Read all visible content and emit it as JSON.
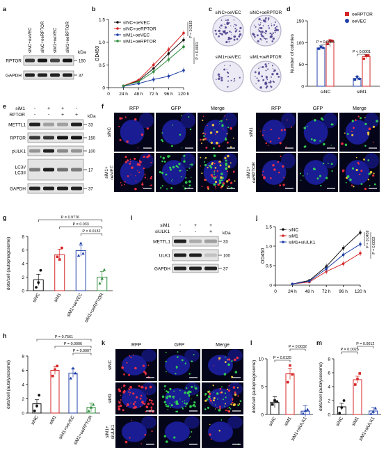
{
  "panels": {
    "a": {
      "letter": "a",
      "lanes": [
        "siNC+oeVEC",
        "siNC+oeRPTOR",
        "siM1+oeVEC",
        "siM1+oeRPTOR"
      ],
      "kda_label": "kDa",
      "bands": [
        {
          "label": "RPTOR",
          "marker": "150",
          "intensity": [
            0.8,
            0.95,
            0.75,
            0.95
          ]
        },
        {
          "label": "GAPDH",
          "marker": "37",
          "intensity": [
            0.9,
            0.9,
            0.9,
            0.9
          ]
        }
      ]
    },
    "b": {
      "letter": "b",
      "chart_data": {
        "type": "line",
        "x": [
          "0",
          "24 h",
          "48 h",
          "72 h",
          "96 h",
          "120 h"
        ],
        "ylabel": "OD450",
        "ylim": [
          0,
          1.5
        ],
        "yticks": [
          "0",
          "0.5",
          "1.0",
          "1.5"
        ],
        "legend_position": "top-left",
        "series": [
          {
            "name": "siNC+oeVEC",
            "color": "#111111",
            "values": [
              null,
              0.04,
              0.15,
              0.42,
              0.75,
              1.05
            ]
          },
          {
            "name": "siNC+oeRPTOR",
            "color": "#d62728",
            "values": [
              null,
              0.04,
              0.17,
              0.5,
              0.84,
              1.2
            ]
          },
          {
            "name": "siM1+oeVEC",
            "color": "#1f3fa8",
            "values": [
              null,
              0.03,
              0.09,
              0.18,
              0.25,
              0.38
            ]
          },
          {
            "name": "siM1+oeRPTOR",
            "color": "#2e8b3a",
            "values": [
              null,
              0.04,
              0.13,
              0.35,
              0.62,
              0.9
            ]
          }
        ],
        "annotations": [
          "P = 0.0182",
          "P < 0.0001"
        ]
      }
    },
    "c": {
      "letter": "c",
      "dish_labels": [
        "siNC+oeVEC",
        "siNC+oeRPTOR",
        "siM1+oeVEC",
        "siM1+oeRPTOR"
      ],
      "colony_density": [
        0.8,
        0.9,
        0.3,
        0.7
      ]
    },
    "d": {
      "letter": "d",
      "chart_data": {
        "type": "bar",
        "categories": [
          "siNC",
          "siM1"
        ],
        "ylabel": "Number of colonies",
        "ylim": [
          0,
          150
        ],
        "yticks": [
          "0",
          "50",
          "100",
          "150"
        ],
        "legend_position": "top-right",
        "series": [
          {
            "name": "oeVEC",
            "color": "#1f3fa8",
            "values": [
              88,
              18
            ],
            "points": [
              [
                86,
                90,
                88
              ],
              [
                15,
                22,
                17
              ]
            ]
          },
          {
            "name": "oeRPTOR",
            "color": "#d62728",
            "values": [
              102,
              68
            ],
            "points": [
              [
                97,
                105,
                104
              ],
              [
                63,
                70,
                71
              ]
            ]
          }
        ],
        "annotations": [
          "P = 0.0064",
          "P < 0.0001"
        ]
      }
    },
    "e": {
      "letter": "e",
      "row_labels": [
        "siM1",
        "RPTOR"
      ],
      "signs": [
        [
          "-",
          "+",
          "+",
          "-"
        ],
        [
          "-",
          "-",
          "+",
          "+"
        ]
      ],
      "kda_label": "kDa",
      "bands": [
        {
          "label": "METTL1",
          "marker": "33",
          "intensity": [
            0.9,
            0.35,
            0.35,
            0.9
          ]
        },
        {
          "label": "RPTOR",
          "marker": "150",
          "intensity": [
            0.8,
            0.8,
            0.95,
            0.95
          ]
        },
        {
          "label": "pULK1",
          "marker": "100",
          "intensity": [
            0.4,
            0.9,
            0.45,
            0.4
          ]
        },
        {
          "label": "LC3I/\nLC3II",
          "marker": "17",
          "intensity": [
            0.5,
            0.9,
            0.55,
            0.5
          ]
        },
        {
          "label": "GAPDH",
          "marker": "37",
          "intensity": [
            0.9,
            0.9,
            0.9,
            0.9
          ]
        }
      ]
    },
    "f": {
      "letter": "f",
      "col_headers": [
        "RFP",
        "GFP",
        "Merge"
      ],
      "row_labels_left": [
        "siNC",
        "siM1+\noeVEC"
      ],
      "row_labels_right": [
        "siM1",
        "siM1+\noeRPTOR"
      ]
    },
    "g": {
      "letter": "g",
      "chart_data": {
        "type": "bar",
        "categories": [
          "siNC",
          "siM1",
          "siM1+oeVEC",
          "siM1+oeRPTOR"
        ],
        "ylabel": "dots/cell (autophagosome)",
        "ylim": [
          0,
          8
        ],
        "yticks": [
          "0",
          "2",
          "4",
          "6",
          "8"
        ],
        "series": [
          {
            "name": "",
            "colors": [
              "#111111",
              "#d62728",
              "#1f3fa8",
              "#2e8b3a"
            ],
            "values": [
              1.6,
              5.3,
              5.9,
              2.0
            ],
            "points": [
              [
                0.5,
                1.2,
                3.0
              ],
              [
                5.0,
                4.6,
                6.3
              ],
              [
                5.2,
                7.0,
                5.5
              ],
              [
                1.1,
                1.8,
                3.1
              ]
            ]
          }
        ],
        "annotations": [
          "P = 0.9776",
          "P = 0.033",
          "P = 0.0132"
        ]
      }
    },
    "h": {
      "letter": "h",
      "chart_data": {
        "type": "bar",
        "categories": [
          "siNC",
          "siM1",
          "siM1+oeVEC",
          "siM1+oeRPTOR"
        ],
        "ylabel": "dots/cell (autolysosome)",
        "ylim": [
          0,
          8
        ],
        "yticks": [
          "0",
          "2",
          "4",
          "6",
          "8"
        ],
        "series": [
          {
            "name": "",
            "colors": [
              "#111111",
              "#d62728",
              "#1f3fa8",
              "#2e8b3a"
            ],
            "values": [
              1.3,
              6.0,
              5.6,
              0.8
            ],
            "points": [
              [
                0.3,
                1.0,
                2.5
              ],
              [
                5.2,
                6.1,
                6.6
              ],
              [
                4.9,
                6.3,
                5.6
              ],
              [
                0.3,
                0.8,
                1.2
              ]
            ]
          }
        ],
        "annotations": [
          "P = 0.7561",
          "P = 0.0006",
          "P = 0.0007"
        ]
      }
    },
    "i": {
      "letter": "i",
      "row_labels": [
        "siM1",
        "siULK1"
      ],
      "signs": [
        [
          "-",
          "+",
          "+"
        ],
        [
          "-",
          "-",
          "+"
        ]
      ],
      "kda_label": "kDa",
      "bands": [
        {
          "label": "METTL1",
          "marker": "33",
          "intensity": [
            0.9,
            0.3,
            0.35
          ]
        },
        {
          "label": "ULK1",
          "marker": "100",
          "intensity": [
            0.9,
            0.9,
            0.2
          ]
        },
        {
          "label": "GAPDH",
          "marker": "37",
          "intensity": [
            0.9,
            0.9,
            0.9
          ]
        }
      ]
    },
    "j": {
      "letter": "j",
      "chart_data": {
        "type": "line",
        "x": [
          "0",
          "24 h",
          "48 h",
          "72 h",
          "96 h",
          "120 h"
        ],
        "ylabel": "OD450",
        "ylim": [
          0,
          1.5
        ],
        "yticks": [
          "0",
          "0.5",
          "1.0",
          "1.5"
        ],
        "legend_position": "top-left",
        "series": [
          {
            "name": "siNC",
            "color": "#111111",
            "values": [
              null,
              0.03,
              0.12,
              0.48,
              0.95,
              1.35
            ]
          },
          {
            "name": "siM1",
            "color": "#d62728",
            "values": [
              null,
              0.03,
              0.08,
              0.35,
              0.55,
              0.82
            ]
          },
          {
            "name": "siM1+siULK1",
            "color": "#1f3fa8",
            "values": [
              null,
              0.03,
              0.1,
              0.42,
              0.78,
              1.05
            ]
          }
        ],
        "annotations": [
          "P = 0.0459",
          "P = 0.0002"
        ]
      }
    },
    "k": {
      "letter": "k",
      "col_headers": [
        "RFP",
        "GFP",
        "Merge"
      ],
      "row_labels": [
        "siNC",
        "siM1",
        "siM1+\nsiULK1"
      ]
    },
    "l": {
      "letter": "l",
      "chart_data": {
        "type": "bar",
        "categories": [
          "siNC",
          "siM1",
          "siM1+siULK1"
        ],
        "ylabel": "dots/cell (autophagosome)",
        "ylim": [
          0,
          10
        ],
        "yticks": [
          "0",
          "5",
          "10"
        ],
        "series": [
          {
            "name": "",
            "colors": [
              "#111111",
              "#d62728",
              "#1f3fa8"
            ],
            "values": [
              2.2,
              7.3,
              0.6
            ],
            "points": [
              [
                1.8,
                2.5,
                2.3
              ],
              [
                5.8,
                8.8,
                7.2
              ],
              [
                0.2,
                0.7,
                0.9
              ]
            ]
          }
        ],
        "annotations": [
          "P = 0.0125",
          "P = 0.0032"
        ]
      }
    },
    "m": {
      "letter": "m",
      "chart_data": {
        "type": "bar",
        "categories": [
          "siNC",
          "siM1",
          "siM1+siULK1"
        ],
        "ylabel": "dots/cell (autolysosome)",
        "ylim": [
          0,
          8
        ],
        "yticks": [
          "0",
          "2",
          "4",
          "6",
          "8"
        ],
        "series": [
          {
            "name": "",
            "colors": [
              "#111111",
              "#d62728",
              "#1f3fa8"
            ],
            "values": [
              1.1,
              5.0,
              0.5
            ],
            "points": [
              [
                0.2,
                1.0,
                2.0
              ],
              [
                4.3,
                5.1,
                5.9
              ],
              [
                0.1,
                0.4,
                0.9
              ]
            ]
          }
        ],
        "annotations": [
          "P = 0.0026",
          "P = 0.0012"
        ]
      }
    }
  }
}
